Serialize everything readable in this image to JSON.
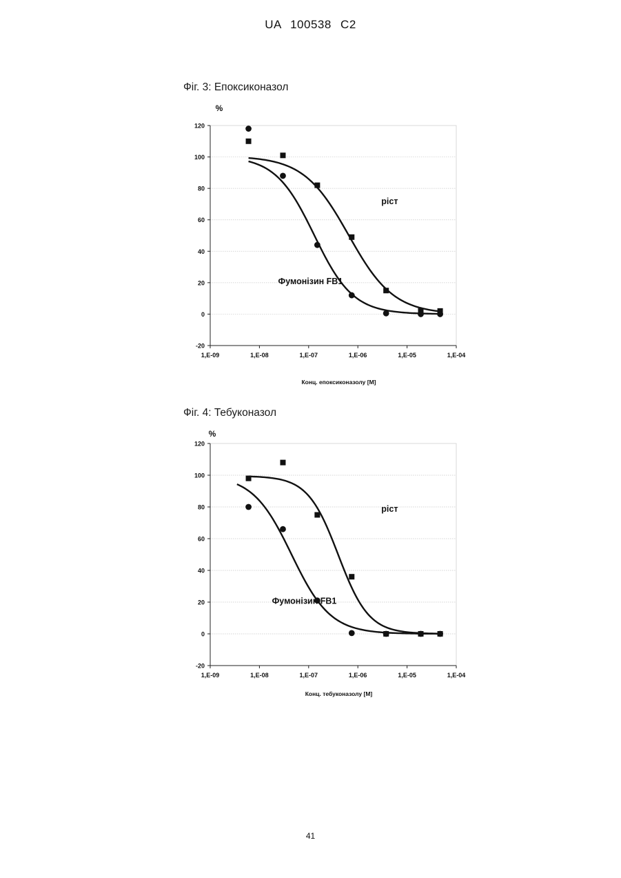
{
  "header": {
    "text": "UA 100538 C2"
  },
  "footer": {
    "page_number": "41"
  },
  "figures": [
    {
      "title": "Фіг. 3: Епоксиконазол"
    },
    {
      "title": "Фіг. 4: Тебуконазол"
    }
  ],
  "chart_data": [
    {
      "type": "scatter",
      "title": "Фіг. 3: Епоксиконазол",
      "xlabel": "Конц. епоксиконазолу [M]",
      "ylabel": "%",
      "x_scale": "log",
      "xlim": [
        1e-09,
        0.0001
      ],
      "ylim": [
        -20,
        120
      ],
      "x_tick_values": [
        1e-09,
        1e-08,
        1e-07,
        1e-06,
        1e-05,
        0.0001
      ],
      "x_tick_labels": [
        "1,E-09",
        "1,E-08",
        "1,E-07",
        "1,E-06",
        "1,E-05",
        "1,E-04"
      ],
      "y_ticks": [
        -20,
        0,
        20,
        40,
        60,
        80,
        100,
        120
      ],
      "grid": "horizontal",
      "series": [
        {
          "name": "ріст",
          "marker": "square",
          "x": [
            6e-09,
            3e-08,
            1.5e-07,
            7.5e-07,
            3.75e-06,
            1.9e-05,
            4.7e-05
          ],
          "y": [
            110,
            101,
            82,
            49,
            15,
            2,
            2
          ],
          "curve": {
            "top": 100.5,
            "bottom": 0,
            "ec50": 6.5e-07,
            "hill": 0.95,
            "x_from": 6e-09,
            "x_to": 4.7e-05
          }
        },
        {
          "name": "Фумонізин FB1",
          "marker": "circle",
          "x": [
            6e-09,
            3e-08,
            1.5e-07,
            7.5e-07,
            3.75e-06,
            1.9e-05,
            4.7e-05
          ],
          "y": [
            118,
            88,
            44,
            12,
            0.5,
            0,
            0
          ],
          "curve": {
            "top": 100.5,
            "bottom": 0,
            "ec50": 1.3e-07,
            "hill": 1.1,
            "x_from": 6e-09,
            "x_to": 4.7e-05
          }
        }
      ],
      "annotations": [
        {
          "text": "ріст",
          "x": 3e-06,
          "y": 70
        },
        {
          "text": "Фумонізин FB1",
          "x": 2.4e-08,
          "y": 19
        }
      ]
    },
    {
      "type": "scatter",
      "title": "Фіг. 4: Тебуконазол",
      "xlabel": "Конц. тебуконазолу [M]",
      "ylabel": "%",
      "x_scale": "log",
      "xlim": [
        1e-09,
        0.0001
      ],
      "ylim": [
        -20,
        120
      ],
      "x_tick_values": [
        1e-09,
        1e-08,
        1e-07,
        1e-06,
        1e-05,
        0.0001
      ],
      "x_tick_labels": [
        "1,E-09",
        "1,E-08",
        "1,E-07",
        "1,E-06",
        "1,E-05",
        "1,E-04"
      ],
      "y_ticks": [
        -20,
        0,
        20,
        40,
        60,
        80,
        100,
        120
      ],
      "grid": "horizontal",
      "series": [
        {
          "name": "ріст",
          "marker": "square",
          "x": [
            6e-09,
            3e-08,
            1.5e-07,
            7.5e-07,
            3.75e-06,
            1.9e-05,
            4.7e-05
          ],
          "y": [
            98,
            108,
            75,
            36,
            0,
            0,
            0
          ],
          "curve": {
            "top": 99.5,
            "bottom": 0,
            "ec50": 4e-07,
            "hill": 1.4,
            "x_from": 6e-09,
            "x_to": 4.7e-05
          }
        },
        {
          "name": "Фумонізин FB1",
          "marker": "circle",
          "x": [
            6e-09,
            3e-08,
            1.5e-07,
            7.5e-07,
            3.75e-06,
            1.9e-05,
            4.7e-05
          ],
          "y": [
            80,
            66,
            21,
            0.5,
            0,
            0,
            0
          ],
          "curve": {
            "top": 100,
            "bottom": 0,
            "ec50": 4.5e-08,
            "hill": 1.1,
            "x_from": 3.5e-09,
            "x_to": 4.7e-05
          }
        }
      ],
      "annotations": [
        {
          "text": "ріст",
          "x": 3e-06,
          "y": 77
        },
        {
          "text": "Фумонізин FB1",
          "x": 1.8e-08,
          "y": 19
        }
      ]
    }
  ]
}
